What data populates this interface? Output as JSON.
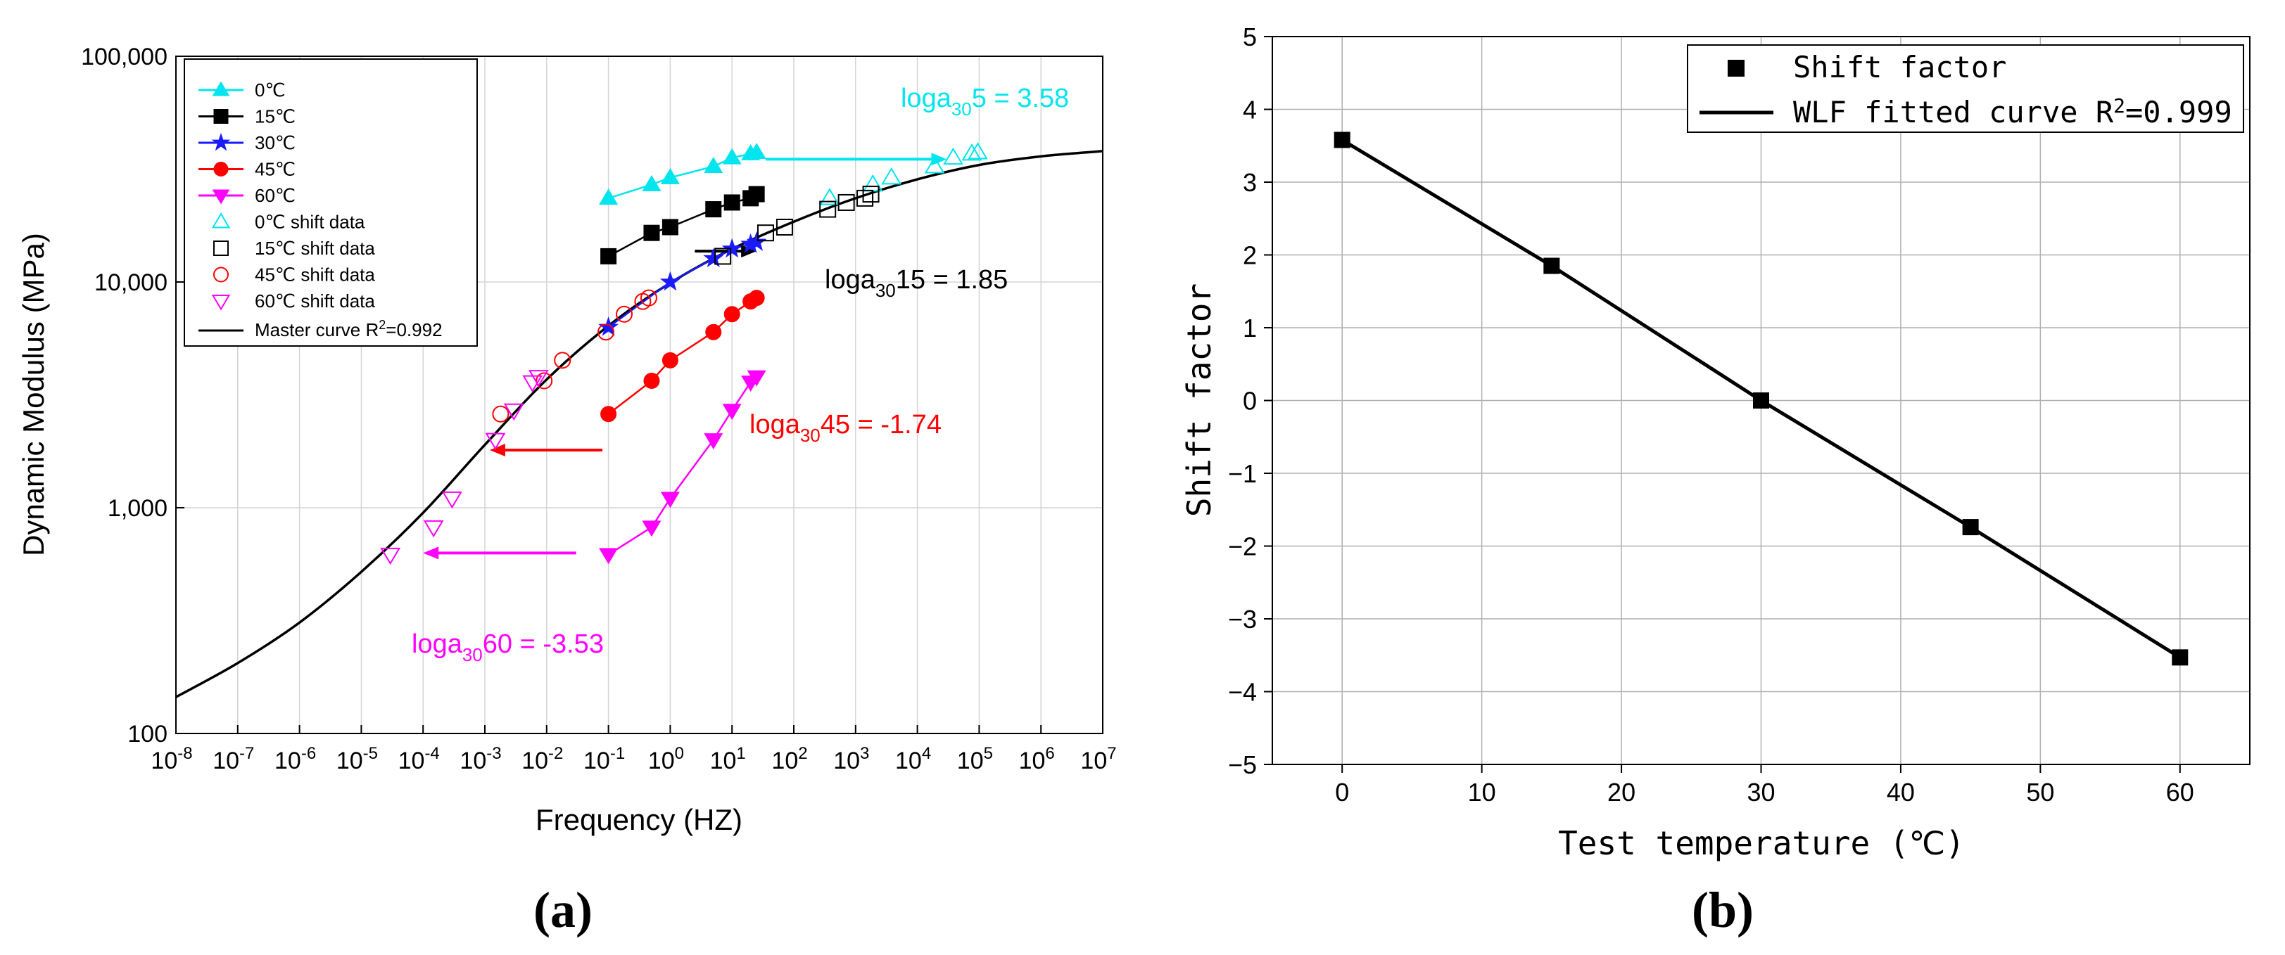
{
  "chart_data": [
    {
      "type": "scatter",
      "panel_label": "(a)",
      "xlabel": "Frequency (HZ)",
      "ylabel": "Dynamic Modulus (MPa)",
      "x_scale": "log",
      "y_scale": "log",
      "xlim": [
        1e-08,
        10000000.0
      ],
      "ylim": [
        100,
        100000
      ],
      "x_ticks": [
        {
          "value": 1e-08,
          "base": "10",
          "exp": "-8"
        },
        {
          "value": 1e-07,
          "base": "10",
          "exp": "-7"
        },
        {
          "value": 1e-06,
          "base": "10",
          "exp": "-6"
        },
        {
          "value": 1e-05,
          "base": "10",
          "exp": "-5"
        },
        {
          "value": 0.0001,
          "base": "10",
          "exp": "-4"
        },
        {
          "value": 0.001,
          "base": "10",
          "exp": "-3"
        },
        {
          "value": 0.01,
          "base": "10",
          "exp": "-2"
        },
        {
          "value": 0.1,
          "base": "10",
          "exp": "-1"
        },
        {
          "value": 1,
          "base": "10",
          "exp": "0"
        },
        {
          "value": 10,
          "base": "10",
          "exp": "1"
        },
        {
          "value": 100,
          "base": "10",
          "exp": "2"
        },
        {
          "value": 1000.0,
          "base": "10",
          "exp": "3"
        },
        {
          "value": 10000.0,
          "base": "10",
          "exp": "4"
        },
        {
          "value": 100000.0,
          "base": "10",
          "exp": "5"
        },
        {
          "value": 1000000.0,
          "base": "10",
          "exp": "6"
        },
        {
          "value": 10000000.0,
          "base": "10",
          "exp": "7"
        }
      ],
      "y_ticks": [
        {
          "value": 100,
          "label": "100"
        },
        {
          "value": 1000,
          "label": "1,000"
        },
        {
          "value": 10000,
          "label": "10,000"
        },
        {
          "value": 100000,
          "label": "100,000"
        }
      ],
      "grid": true,
      "legend_position": "top-left",
      "series": [
        {
          "name": "0℃",
          "marker": "triangle-up",
          "filled": true,
          "color": "#00e5ee",
          "line": true,
          "x": [
            0.1,
            0.5,
            1,
            5,
            10,
            20,
            25
          ],
          "y": [
            23500,
            27000,
            29000,
            32500,
            35500,
            37000,
            37500
          ]
        },
        {
          "name": "15℃",
          "marker": "square",
          "filled": true,
          "color": "#000000",
          "line": true,
          "x": [
            0.1,
            0.5,
            1,
            5,
            10,
            20,
            25
          ],
          "y": [
            13000,
            16500,
            17500,
            21000,
            22500,
            23500,
            24500
          ]
        },
        {
          "name": "30℃",
          "marker": "star",
          "filled": true,
          "color": "#1a1aff",
          "line": true,
          "x": [
            0.1,
            1,
            5,
            10,
            20,
            25
          ],
          "y": [
            6300,
            10000,
            12700,
            14000,
            14700,
            15000
          ]
        },
        {
          "name": "45℃",
          "marker": "circle",
          "filled": true,
          "color": "#ff0000",
          "line": true,
          "x": [
            0.1,
            0.5,
            1,
            5,
            10,
            20,
            25
          ],
          "y": [
            2600,
            3650,
            4500,
            6000,
            7200,
            8200,
            8500
          ]
        },
        {
          "name": "60℃",
          "marker": "triangle-down",
          "filled": true,
          "color": "#ff00ff",
          "line": true,
          "x": [
            0.1,
            0.5,
            1,
            5,
            10,
            20,
            25
          ],
          "y": [
            620,
            820,
            1100,
            2000,
            2700,
            3600,
            3800
          ]
        },
        {
          "name": "0℃ shift data",
          "marker": "triangle-up",
          "filled": false,
          "color": "#00e5ee",
          "line": false,
          "x": [
            380,
            1900,
            3800,
            19000,
            38000,
            76000,
            95000
          ],
          "y": [
            23500,
            27000,
            29000,
            32500,
            35500,
            37000,
            37500
          ]
        },
        {
          "name": "15℃ shift data",
          "marker": "square",
          "filled": false,
          "color": "#000000",
          "line": false,
          "x": [
            7.1,
            35,
            71,
            354,
            708,
            1416,
            1770
          ],
          "y": [
            13000,
            16500,
            17500,
            21000,
            22500,
            23500,
            24500
          ]
        },
        {
          "name": "45℃ shift data",
          "marker": "circle",
          "filled": false,
          "color": "#ff0000",
          "line": false,
          "x": [
            0.0018,
            0.0091,
            0.018,
            0.091,
            0.18,
            0.36,
            0.45
          ],
          "y": [
            2600,
            3650,
            4500,
            6000,
            7200,
            8200,
            8500
          ]
        },
        {
          "name": "60℃ shift data",
          "marker": "triangle-down",
          "filled": false,
          "color": "#ff00ff",
          "line": false,
          "x": [
            2.95e-05,
            0.000148,
            0.000295,
            0.00148,
            0.00295,
            0.0059,
            0.0074
          ],
          "y": [
            620,
            820,
            1100,
            2000,
            2700,
            3600,
            3800
          ]
        }
      ],
      "master_curve": {
        "name": "Master curve R²=0.992",
        "legend_base": "Master curve R",
        "legend_sup": "2",
        "legend_tail": "=0.992",
        "color": "#000000",
        "x": [
          1e-08,
          1e-07,
          1e-06,
          1e-05,
          0.0001,
          0.001,
          0.01,
          0.1,
          1,
          10,
          100,
          1000.0,
          10000.0,
          100000.0,
          1000000.0,
          10000000.0
        ],
        "y": [
          145,
          205,
          310,
          520,
          950,
          1900,
          3700,
          6400,
          9900,
          14000,
          18500,
          23500,
          28500,
          33000,
          36000,
          38000
        ]
      },
      "shift_arrows": [
        {
          "color": "#00e5ee",
          "from_x": 35,
          "to_x": 30000,
          "y": 35000
        },
        {
          "color": "#000000",
          "from_x": 2.5,
          "to_x": 25,
          "y": 13700
        },
        {
          "color": "#ff0000",
          "from_x": 0.08,
          "to_x": 0.0012,
          "y": 1800
        },
        {
          "color": "#ff00ff",
          "from_x": 0.03,
          "to_x": 0.0001,
          "y": 630
        }
      ],
      "annotations": [
        {
          "color": "#00e5ee",
          "base": "loga",
          "sub": "30",
          "rest": "5 = 3.58"
        },
        {
          "color": "#000000",
          "base": "loga",
          "sub": "30",
          "rest": "15 = 1.85"
        },
        {
          "color": "#ff0000",
          "base": "loga",
          "sub": "30",
          "rest": "45 = -1.74"
        },
        {
          "color": "#ff00ff",
          "base": "loga",
          "sub": "30",
          "rest": "60 = -3.53"
        }
      ]
    },
    {
      "type": "scatter",
      "panel_label": "(b)",
      "xlabel": "Test temperature (℃)",
      "ylabel": "Shift factor",
      "xlim": [
        -5,
        65
      ],
      "ylim": [
        -5,
        5
      ],
      "x_ticks": [
        0,
        10,
        20,
        30,
        40,
        50,
        60
      ],
      "y_ticks": [
        -5,
        -4,
        -3,
        -2,
        -1,
        0,
        1,
        2,
        3,
        4,
        5
      ],
      "grid": true,
      "legend_position": "top-right",
      "series": [
        {
          "name": "Shift factor",
          "marker": "square",
          "filled": true,
          "color": "#000000",
          "x": [
            0,
            15,
            30,
            45,
            60
          ],
          "y": [
            3.58,
            1.85,
            0,
            -1.74,
            -3.53
          ]
        }
      ],
      "fit": {
        "name": "WLF fitted curve R²=0.999",
        "legend_base": "WLF fitted curve R",
        "legend_sup": "2",
        "legend_tail": "=0.999",
        "color": "#000000",
        "x": [
          0,
          15,
          30,
          45,
          60
        ],
        "y": [
          3.58,
          1.85,
          0,
          -1.74,
          -3.53
        ]
      }
    }
  ]
}
